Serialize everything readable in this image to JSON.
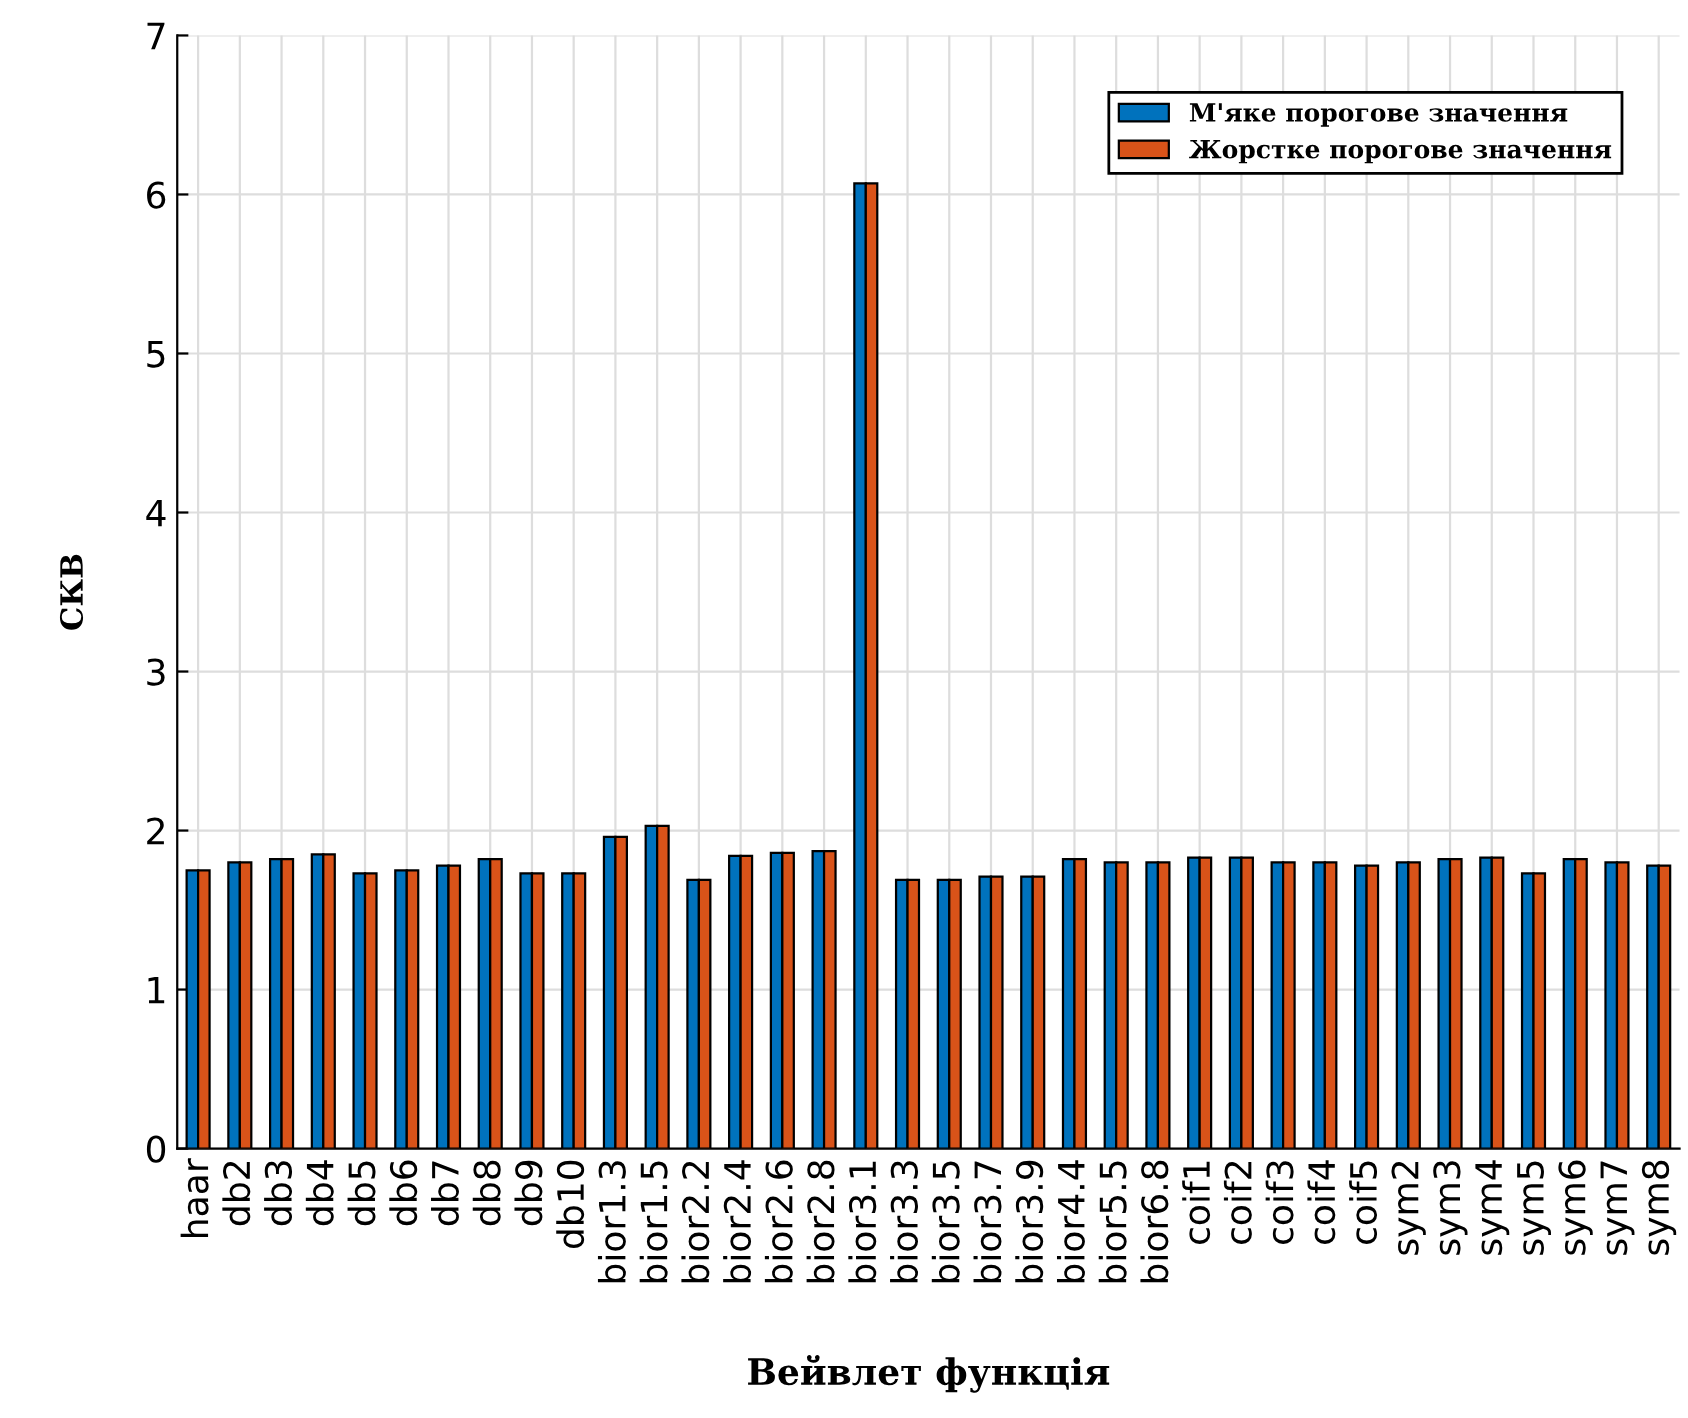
{
  "chart_data": {
    "type": "bar",
    "xlabel": "Вейвлет функція",
    "ylabel": "СКВ",
    "categories": [
      "haar",
      "db2",
      "db3",
      "db4",
      "db5",
      "db6",
      "db7",
      "db8",
      "db9",
      "db10",
      "bior1.3",
      "bior1.5",
      "bior2.2",
      "bior2.4",
      "bior2.6",
      "bior2.8",
      "bior3.1",
      "bior3.3",
      "bior3.5",
      "bior3.7",
      "bior3.9",
      "bior4.4",
      "bior5.5",
      "bior6.8",
      "coif1",
      "coif2",
      "coif3",
      "coif4",
      "coif5",
      "sym2",
      "sym3",
      "sym4",
      "sym5",
      "sym6",
      "sym7",
      "sym8"
    ],
    "series": [
      {
        "name": "М'яке порогове значення",
        "color": "#0072bd",
        "values": [
          1.75,
          1.8,
          1.82,
          1.85,
          1.73,
          1.75,
          1.78,
          1.82,
          1.73,
          1.73,
          1.96,
          2.03,
          1.69,
          1.84,
          1.86,
          1.87,
          6.07,
          1.69,
          1.69,
          1.71,
          1.71,
          1.82,
          1.8,
          1.8,
          1.83,
          1.83,
          1.8,
          1.8,
          1.78,
          1.8,
          1.82,
          1.83,
          1.73,
          1.82,
          1.8,
          1.78
        ]
      },
      {
        "name": "Жорстке порогове значення",
        "color": "#d95319",
        "values": [
          1.75,
          1.8,
          1.82,
          1.85,
          1.73,
          1.75,
          1.78,
          1.82,
          1.73,
          1.73,
          1.96,
          2.03,
          1.69,
          1.84,
          1.86,
          1.87,
          6.07,
          1.69,
          1.69,
          1.71,
          1.71,
          1.82,
          1.8,
          1.8,
          1.83,
          1.83,
          1.8,
          1.8,
          1.78,
          1.8,
          1.82,
          1.83,
          1.73,
          1.82,
          1.8,
          1.78
        ]
      }
    ],
    "ylim": [
      0,
      7
    ],
    "yticks": [
      0,
      1,
      2,
      3,
      4,
      5,
      6,
      7
    ],
    "grid": true,
    "legend": "top right"
  }
}
